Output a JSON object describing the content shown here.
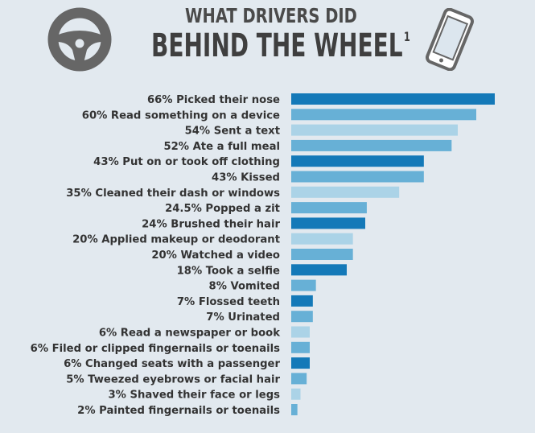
{
  "title": {
    "line1": "WHAT DRIVERS DID",
    "line2": "BEHIND THE WHEEL",
    "footnote_mark": "1"
  },
  "icons": {
    "left": "steering-wheel-icon",
    "right": "smartphone-icon"
  },
  "colors": {
    "background": "#e2e9ef",
    "dark_blue": "#1479b8",
    "mid_blue": "#67b0d6",
    "light_blue": "#abd3e7",
    "text": "#333333"
  },
  "chart_data": {
    "type": "bar",
    "orientation": "horizontal",
    "unit": "%",
    "categories": [
      "Picked their nose",
      "Read something on a device",
      "Sent a text",
      "Ate a full meal",
      "Put on or took off clothing",
      "Kissed",
      "Cleaned their dash or windows",
      "Popped a zit",
      "Brushed their hair",
      "Applied makeup or deodorant",
      "Watched a video",
      "Took a selfie",
      "Vomited",
      "Flossed teeth",
      "Urinated",
      "Read a newspaper or book",
      "Filed or clipped fingernails or toenails",
      "Changed seats with a passenger",
      "Tweezed eyebrows or facial hair",
      "Shaved their face or legs",
      "Painted fingernails or toenails"
    ],
    "values": [
      66,
      60,
      54,
      52,
      43,
      43,
      35,
      24.5,
      24,
      20,
      20,
      18,
      8,
      7,
      7,
      6,
      6,
      6,
      5,
      3,
      2
    ],
    "labels": [
      "66% Picked their nose",
      "60% Read something on a device",
      "54% Sent a text",
      "52% Ate a full meal",
      "43% Put on or took off clothing",
      "43% Kissed",
      "35% Cleaned their dash or windows",
      "24.5% Popped a zit",
      "24% Brushed their hair",
      "20% Applied makeup or deodorant",
      "20% Watched a video",
      "18% Took a selfie",
      "8% Vomited",
      "7% Flossed teeth",
      "7% Urinated",
      "6% Read a newspaper or book",
      "6% Filed or clipped fingernails or toenails",
      "6% Changed seats with a passenger",
      "5% Tweezed eyebrows or facial hair",
      "3% Shaved their face or legs",
      "2% Painted fingernails or toenails"
    ],
    "bar_colors": [
      "#1479b8",
      "#67b0d6",
      "#abd3e7",
      "#67b0d6",
      "#1479b8",
      "#67b0d6",
      "#abd3e7",
      "#67b0d6",
      "#1479b8",
      "#abd3e7",
      "#67b0d6",
      "#1479b8",
      "#67b0d6",
      "#1479b8",
      "#67b0d6",
      "#abd3e7",
      "#67b0d6",
      "#1479b8",
      "#67b0d6",
      "#abd3e7",
      "#67b0d6"
    ],
    "grid": false,
    "legend": "none"
  }
}
